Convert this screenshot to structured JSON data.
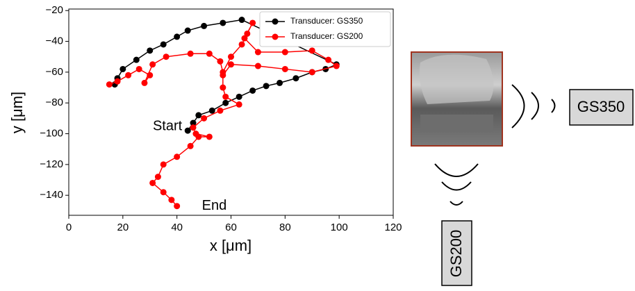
{
  "chart_data": {
    "type": "line",
    "xlabel": "x [μm]",
    "ylabel": "y [μm]",
    "xlim": [
      0,
      120
    ],
    "xticks": [
      0,
      20,
      40,
      60,
      80,
      100,
      120
    ],
    "ylim": [
      -153,
      -19
    ],
    "yticks": [
      {
        "value": -20,
        "label": "−20"
      },
      {
        "value": -40,
        "label": "−40"
      },
      {
        "value": -60,
        "label": "−60"
      },
      {
        "value": -80,
        "label": "−80"
      },
      {
        "value": -100,
        "label": "−100"
      },
      {
        "value": -120,
        "label": "−120"
      },
      {
        "value": -140,
        "label": "−140"
      }
    ],
    "legend": "upper right",
    "annotations": [
      "Start",
      "End"
    ],
    "series": [
      {
        "name": "Transducer: GS350",
        "color": "#000000",
        "x": [
          44,
          46,
          48,
          53,
          58,
          63,
          68,
          73,
          78,
          84,
          90,
          95,
          99,
          64,
          57,
          50,
          44,
          40,
          35,
          30,
          25,
          20,
          18,
          17
        ],
        "values": [
          -98,
          -93,
          -88,
          -85,
          -80,
          -76,
          -72,
          -69,
          -67,
          -64,
          -60,
          -58,
          -55,
          -26,
          -28,
          -30,
          -33,
          -37,
          -42,
          -46,
          -52,
          -58,
          -64,
          -68
        ]
      },
      {
        "name": "Transducer: GS200",
        "color": "#ff0000",
        "x": [
          15,
          18,
          22,
          26,
          30,
          28,
          31,
          36,
          45,
          52,
          56,
          57,
          60,
          64,
          66,
          68,
          65,
          70,
          80,
          90,
          96,
          99,
          90,
          80,
          70,
          60,
          57,
          57,
          58,
          63,
          56,
          50,
          46,
          47,
          52,
          48,
          45,
          40,
          35,
          33,
          31,
          35,
          38,
          40
        ],
        "values": [
          -68,
          -66,
          -62,
          -58,
          -62,
          -67,
          -55,
          -50,
          -48,
          -48,
          -53,
          -60,
          -50,
          -42,
          -35,
          -28,
          -38,
          -47,
          -47,
          -46,
          -52,
          -56,
          -60,
          -58,
          -56,
          -55,
          -62,
          -70,
          -76,
          -81,
          -85,
          -90,
          -96,
          -100,
          -102,
          -102,
          -108,
          -115,
          -120,
          -128,
          -132,
          -138,
          -143,
          -147
        ]
      }
    ]
  },
  "diagram": {
    "transducer_right": "GS350",
    "transducer_bottom": "GS200"
  }
}
